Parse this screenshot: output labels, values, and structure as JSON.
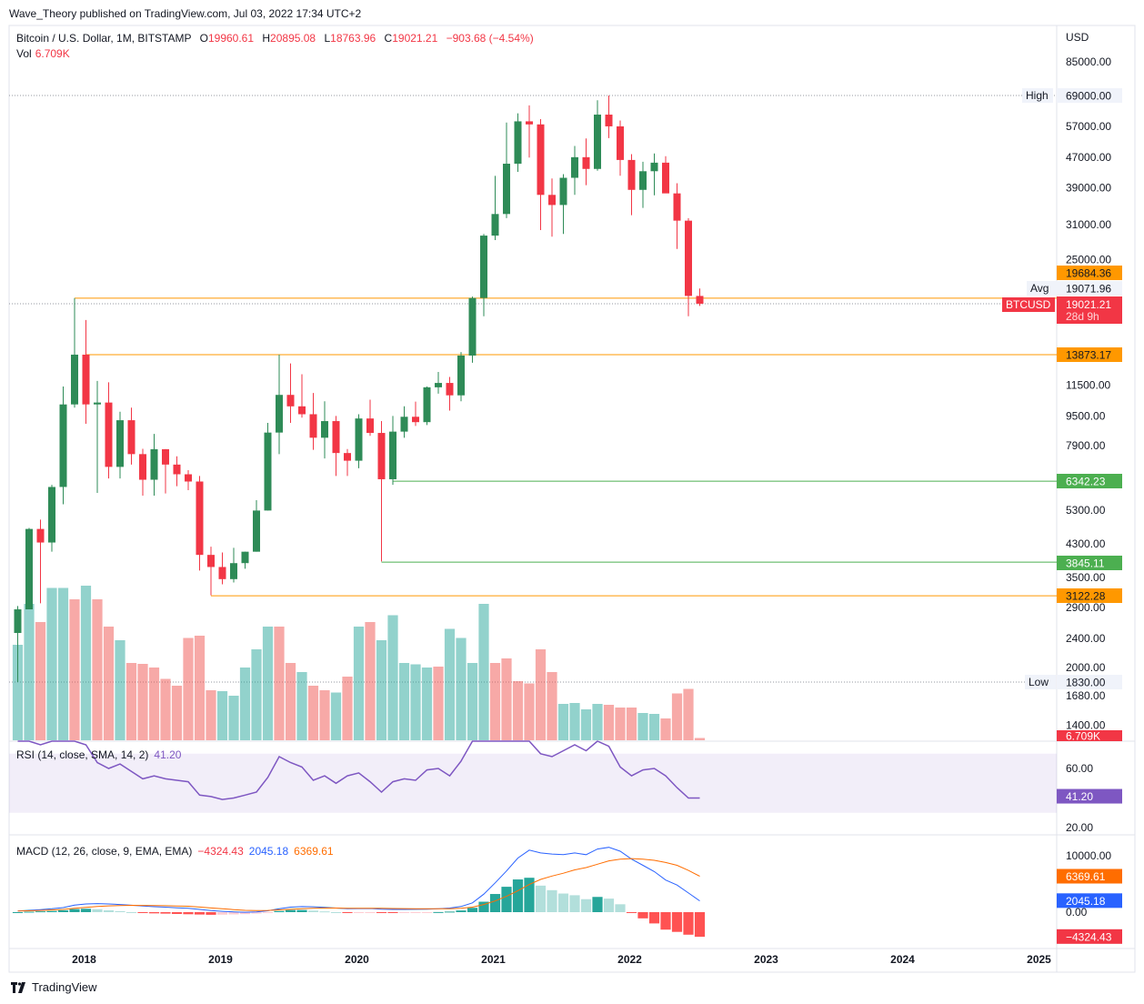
{
  "header": {
    "publisher": "Wave_Theory published on TradingView.com, Jul 03, 2022 17:34 UTC+2",
    "symbol": "Bitcoin / U.S. Dollar, 1M, BITSTAMP",
    "open_label": "O",
    "open": "19960.61",
    "high_label": "H",
    "high": "20895.08",
    "low_label": "L",
    "low": "18763.96",
    "close_label": "C",
    "close": "19021.21",
    "change": "−903.68 (−4.54%)",
    "vol_label": "Vol",
    "vol": "6.709K"
  },
  "footer": {
    "brand": "TradingView"
  },
  "axis": {
    "currency": "USD",
    "price_ticks": [
      "85000.00",
      "69000.00",
      "57000.00",
      "47000.00",
      "39000.00",
      "31000.00",
      "25000.00",
      "11500.00",
      "9500.00",
      "7900.00",
      "5300.00",
      "4300.00",
      "3500.00",
      "2900.00",
      "2400.00",
      "2000.00",
      "1680.00",
      "1400.00"
    ],
    "time_labels": [
      "2018",
      "2019",
      "2020",
      "2021",
      "2022",
      "2023",
      "2024",
      "2025"
    ],
    "rsi_ticks": [
      "60.00",
      "20.00"
    ],
    "macd_ticks": [
      "10000.00",
      "0.00"
    ]
  },
  "price_badges": {
    "high_label": "High",
    "high_value": "69000.00",
    "low_label": "Low",
    "low_value": "1830.00",
    "avg_label": "Avg",
    "avg_value": "19071.96",
    "ticker": "BTCUSD",
    "last_price": "19021.21",
    "countdown": "28d 9h",
    "level1": "19684.36",
    "level2": "13873.17",
    "level3": "6342.23",
    "level4": "3845.11",
    "level5": "3122.28",
    "volume_value": "6.709K"
  },
  "rsi": {
    "title": "RSI (14, close, SMA, 14, 2)",
    "value": "41.20"
  },
  "macd": {
    "title": "MACD (12, 26, close, 9, EMA, EMA)",
    "hist": "−4324.43",
    "macd": "2045.18",
    "signal": "6369.61"
  },
  "colors": {
    "up": "#2e8b57",
    "down": "#f23645",
    "orange": "#ff9800",
    "green_line": "#4caf50",
    "rsi": "#7e57c2",
    "macd": "#2962ff",
    "signal": "#ff6d00"
  },
  "chart_data": {
    "type": "candlestick",
    "title": "Bitcoin / U.S. Dollar, 1M, BITSTAMP",
    "scale": "log",
    "ylim": [
      1300,
      95000
    ],
    "start_month": "2017-07",
    "candles": [
      [
        2480,
        2930,
        1830,
        2870
      ],
      [
        2870,
        4750,
        2870,
        4720
      ],
      [
        4720,
        5000,
        2980,
        4340
      ],
      [
        4340,
        6200,
        4100,
        6120
      ],
      [
        6120,
        11400,
        5500,
        10200
      ],
      [
        10200,
        19700,
        10000,
        13880
      ],
      [
        13880,
        17200,
        9050,
        10200
      ],
      [
        10200,
        11800,
        5900,
        10320
      ],
      [
        10320,
        11700,
        6450,
        6930
      ],
      [
        6930,
        9750,
        6450,
        9250
      ],
      [
        9250,
        10000,
        7030,
        7500
      ],
      [
        7500,
        7750,
        5800,
        6400
      ],
      [
        6400,
        8500,
        5800,
        7730
      ],
      [
        7730,
        7740,
        5880,
        7030
      ],
      [
        7030,
        7400,
        6150,
        6620
      ],
      [
        6620,
        6790,
        6000,
        6330
      ],
      [
        6330,
        6550,
        3650,
        4020
      ],
      [
        4020,
        4230,
        3130,
        3730
      ],
      [
        3730,
        4080,
        3350,
        3460
      ],
      [
        3460,
        4200,
        3390,
        3820
      ],
      [
        3820,
        4100,
        3690,
        4100
      ],
      [
        4100,
        5640,
        4100,
        5290
      ],
      [
        5290,
        9100,
        5290,
        8570
      ],
      [
        8570,
        13880,
        7500,
        10820
      ],
      [
        10820,
        13150,
        9100,
        10080
      ],
      [
        10080,
        12300,
        9400,
        9600
      ],
      [
        9600,
        10950,
        7700,
        8300
      ],
      [
        8300,
        10400,
        7300,
        9200
      ],
      [
        9200,
        9500,
        6550,
        7550
      ],
      [
        7550,
        7740,
        6550,
        7200
      ],
      [
        7200,
        9600,
        6870,
        9350
      ],
      [
        9350,
        10500,
        8400,
        8550
      ],
      [
        8550,
        9200,
        3860,
        6420
      ],
      [
        6420,
        9500,
        6200,
        8620
      ],
      [
        8620,
        10080,
        8300,
        9450
      ],
      [
        9450,
        10380,
        8930,
        9140
      ],
      [
        9140,
        11400,
        8980,
        11340
      ],
      [
        11340,
        12470,
        10900,
        11650
      ],
      [
        11650,
        12090,
        9820,
        10790
      ],
      [
        10790,
        14100,
        10400,
        13800
      ],
      [
        13800,
        19880,
        13200,
        19710
      ],
      [
        19710,
        29300,
        17600,
        28990
      ],
      [
        28990,
        41950,
        28200,
        33140
      ],
      [
        33140,
        58350,
        32300,
        45240
      ],
      [
        45240,
        61800,
        43000,
        58800
      ],
      [
        58800,
        64900,
        47000,
        57700
      ],
      [
        57700,
        59600,
        30000,
        37300
      ],
      [
        37300,
        41300,
        28800,
        35040
      ],
      [
        35040,
        42400,
        29300,
        41460
      ],
      [
        41460,
        50500,
        37300,
        47100
      ],
      [
        47100,
        52900,
        39600,
        43800
      ],
      [
        43800,
        67000,
        43300,
        61300
      ],
      [
        61300,
        69000,
        53000,
        57000
      ],
      [
        57000,
        59100,
        42000,
        46300
      ],
      [
        46300,
        48000,
        32900,
        38480
      ],
      [
        38480,
        45800,
        34400,
        43180
      ],
      [
        43180,
        48200,
        37200,
        45530
      ],
      [
        45530,
        47400,
        37700,
        37650
      ],
      [
        37650,
        40100,
        26700,
        31800
      ],
      [
        31800,
        32300,
        17600,
        19960
      ],
      [
        19960,
        20900,
        18760,
        19020
      ]
    ],
    "volume": [
      [
        2.1,
        1
      ],
      [
        3.0,
        1
      ],
      [
        2.6,
        0
      ],
      [
        3.35,
        1
      ],
      [
        3.35,
        1
      ],
      [
        3.1,
        0
      ],
      [
        3.4,
        1
      ],
      [
        3.1,
        0
      ],
      [
        2.5,
        0
      ],
      [
        2.2,
        1
      ],
      [
        1.7,
        0
      ],
      [
        1.68,
        0
      ],
      [
        1.6,
        0
      ],
      [
        1.35,
        0
      ],
      [
        1.2,
        0
      ],
      [
        2.25,
        0
      ],
      [
        2.3,
        0
      ],
      [
        1.1,
        0
      ],
      [
        1.08,
        1
      ],
      [
        0.98,
        1
      ],
      [
        1.6,
        1
      ],
      [
        2.0,
        1
      ],
      [
        2.5,
        1
      ],
      [
        2.5,
        0
      ],
      [
        1.7,
        0
      ],
      [
        1.5,
        1
      ],
      [
        1.2,
        0
      ],
      [
        1.1,
        0
      ],
      [
        1.05,
        1
      ],
      [
        1.4,
        0
      ],
      [
        2.5,
        1
      ],
      [
        2.6,
        0
      ],
      [
        2.2,
        1
      ],
      [
        2.75,
        1
      ],
      [
        1.7,
        1
      ],
      [
        1.67,
        1
      ],
      [
        1.6,
        1
      ],
      [
        1.62,
        0
      ],
      [
        2.45,
        1
      ],
      [
        2.25,
        1
      ],
      [
        1.7,
        1
      ],
      [
        3.0,
        1
      ],
      [
        1.7,
        0
      ],
      [
        1.8,
        0
      ],
      [
        1.3,
        0
      ],
      [
        1.25,
        0
      ],
      [
        2.0,
        0
      ],
      [
        1.5,
        0
      ],
      [
        0.8,
        1
      ],
      [
        0.82,
        1
      ],
      [
        0.68,
        1
      ],
      [
        0.8,
        1
      ],
      [
        0.78,
        0
      ],
      [
        0.72,
        0
      ],
      [
        0.72,
        0
      ],
      [
        0.6,
        1
      ],
      [
        0.58,
        1
      ],
      [
        0.48,
        0
      ],
      [
        1.03,
        0
      ],
      [
        1.13,
        0
      ],
      [
        0.05,
        0
      ]
    ],
    "rsi": [
      96,
      80,
      76,
      80,
      86,
      92,
      76,
      64,
      60,
      63,
      58,
      53,
      55,
      53,
      52,
      51,
      42,
      41,
      39,
      40,
      42,
      44,
      54,
      68,
      64,
      61,
      52,
      55,
      50,
      55,
      57,
      51,
      44,
      51,
      53,
      52,
      59,
      60,
      55,
      65,
      80,
      95,
      99,
      97,
      99,
      99,
      70,
      68,
      72,
      76,
      72,
      80,
      75,
      61,
      55,
      59,
      60,
      55,
      47,
      40,
      40
    ],
    "macd_line": [
      200,
      320,
      450,
      600,
      800,
      1250,
      1450,
      1520,
      1450,
      1350,
      1220,
      1080,
      970,
      880,
      780,
      680,
      480,
      280,
      150,
      50,
      -20,
      30,
      250,
      600,
      880,
      980,
      950,
      850,
      720,
      620,
      630,
      650,
      520,
      490,
      480,
      500,
      520,
      620,
      720,
      1000,
      1650,
      3200,
      5200,
      7300,
      9600,
      11000,
      10500,
      10300,
      10200,
      10500,
      10200,
      11200,
      11500,
      10800,
      9400,
      8300,
      7200,
      5700,
      4800,
      3400,
      2000
    ],
    "macd_signal": [
      200,
      240,
      300,
      390,
      480,
      700,
      850,
      1000,
      1120,
      1180,
      1210,
      1200,
      1180,
      1140,
      1100,
      1050,
      900,
      750,
      600,
      450,
      330,
      280,
      300,
      400,
      500,
      600,
      680,
      720,
      720,
      700,
      690,
      680,
      670,
      650,
      630,
      600,
      590,
      600,
      620,
      700,
      880,
      1350,
      1980,
      2800,
      3800,
      4900,
      5800,
      6400,
      6900,
      7500,
      7900,
      8500,
      9100,
      9400,
      9500,
      9400,
      9200,
      8800,
      8300,
      7400,
      6369
    ]
  }
}
